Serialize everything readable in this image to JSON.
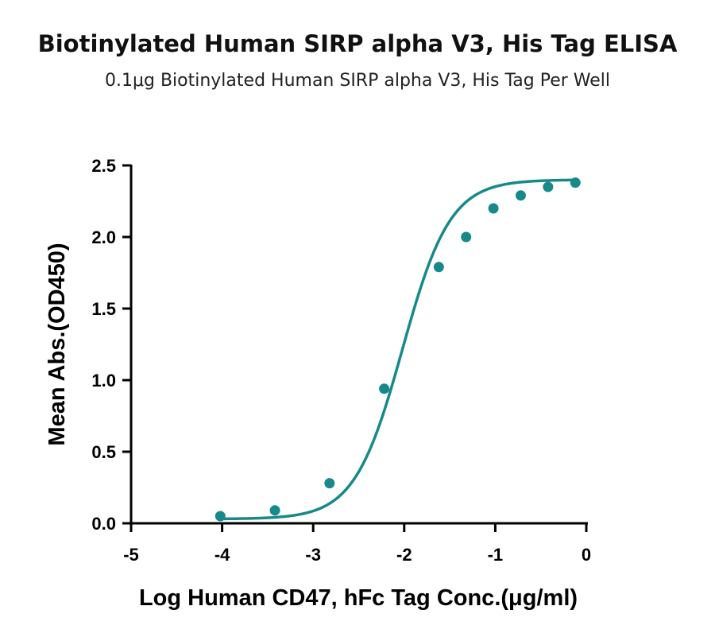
{
  "header": {
    "title": "Biotinylated Human SIRP alpha V3, His Tag ELISA",
    "subtitle": "0.1μg Biotinylated Human SIRP alpha V3, His Tag Per Well"
  },
  "colors": {
    "series": "#17898a",
    "axis": "#000000"
  },
  "chart_data": {
    "type": "scatter",
    "title": "Biotinylated Human SIRP alpha V3, His Tag ELISA",
    "subtitle": "0.1μg Biotinylated Human SIRP alpha V3, His Tag Per Well",
    "xlabel": "Log Human CD47, hFc Tag Conc.(μg/ml)",
    "ylabel": "Mean Abs.(OD450)",
    "xlim": [
      -5,
      0
    ],
    "ylim": [
      0,
      2.5
    ],
    "xticks": [
      -5,
      -4,
      -3,
      -2,
      -1,
      0
    ],
    "xtick_labels": [
      "-5",
      "-4",
      "-3",
      "-2",
      "-1",
      "0"
    ],
    "yticks": [
      0,
      0.5,
      1.0,
      1.5,
      2.0,
      2.5
    ],
    "ytick_labels": [
      "0.0",
      "0.5",
      "1.0",
      "1.5",
      "2.0",
      "2.5"
    ],
    "grid": false,
    "series": [
      {
        "x": [
          -4.02,
          -3.42,
          -2.82,
          -2.22,
          -1.62,
          -1.32,
          -1.02,
          -0.72,
          -0.42,
          -0.12
        ],
        "y": [
          0.05,
          0.09,
          0.28,
          0.94,
          1.79,
          2.0,
          2.2,
          2.29,
          2.35,
          2.38
        ],
        "fit": "four-parameter logistic",
        "fit_params": {
          "bottom": 0.03,
          "top": 2.4,
          "log_ec50": -2.02,
          "hill": 1.65
        }
      }
    ]
  }
}
